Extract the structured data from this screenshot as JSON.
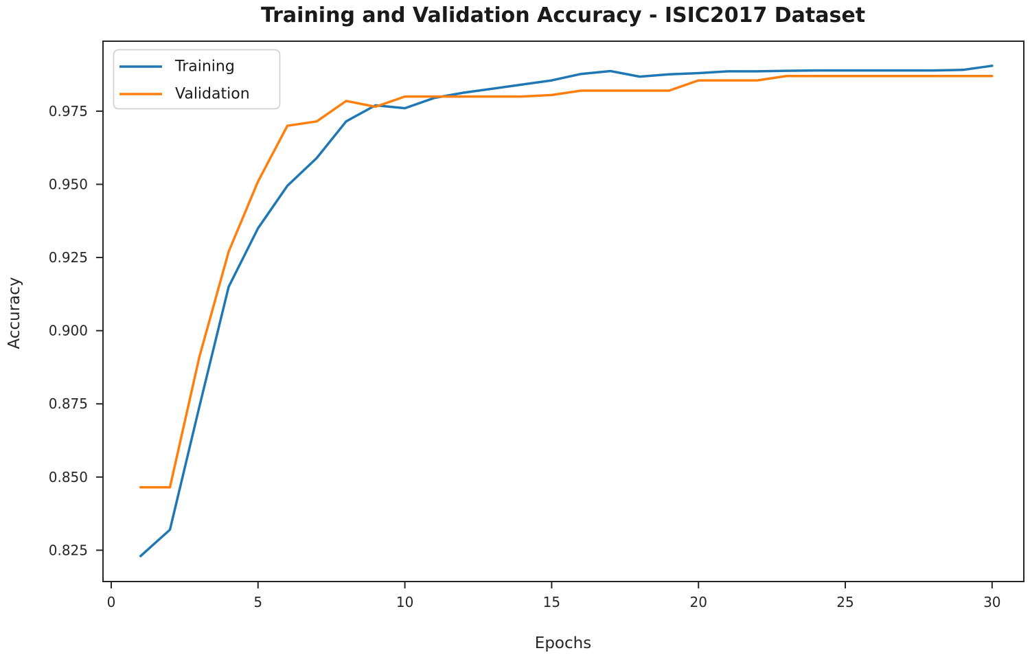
{
  "chart_data": {
    "type": "line",
    "title": "Training and Validation Accuracy - ISIC2017 Dataset",
    "xlabel": "Epochs",
    "ylabel": "Accuracy",
    "x": [
      1,
      2,
      3,
      4,
      5,
      6,
      7,
      8,
      9,
      10,
      11,
      12,
      13,
      14,
      15,
      16,
      17,
      18,
      19,
      20,
      21,
      22,
      23,
      24,
      25,
      26,
      27,
      28,
      29,
      30
    ],
    "series": [
      {
        "name": "Training",
        "color": "#1f77b4",
        "values": [
          0.823,
          0.832,
          0.874,
          0.915,
          0.935,
          0.9495,
          0.959,
          0.9715,
          0.977,
          0.976,
          0.9795,
          0.9813,
          0.9827,
          0.9841,
          0.9855,
          0.9877,
          0.9887,
          0.9868,
          0.9876,
          0.988,
          0.9886,
          0.9886,
          0.9888,
          0.9889,
          0.9889,
          0.9889,
          0.9889,
          0.9889,
          0.9891,
          0.9905
        ]
      },
      {
        "name": "Validation",
        "color": "#ff7f0e",
        "values": [
          0.8465,
          0.8465,
          0.891,
          0.927,
          0.951,
          0.97,
          0.9715,
          0.9785,
          0.9765,
          0.98,
          0.98,
          0.98,
          0.98,
          0.98,
          0.9805,
          0.982,
          0.982,
          0.982,
          0.982,
          0.9855,
          0.9855,
          0.9855,
          0.987,
          0.987,
          0.987,
          0.987,
          0.987,
          0.987,
          0.987,
          0.987
        ]
      }
    ],
    "xlim": [
      -0.28,
      31.08
    ],
    "ylim": [
      0.8143,
      0.9989
    ],
    "xtick_labels": [
      "0",
      "5",
      "10",
      "15",
      "20",
      "25",
      "30"
    ],
    "ytick_labels": [
      "0.825",
      "0.850",
      "0.875",
      "0.900",
      "0.925",
      "0.950",
      "0.975"
    ],
    "grid": false,
    "legend_position": "upper left"
  }
}
